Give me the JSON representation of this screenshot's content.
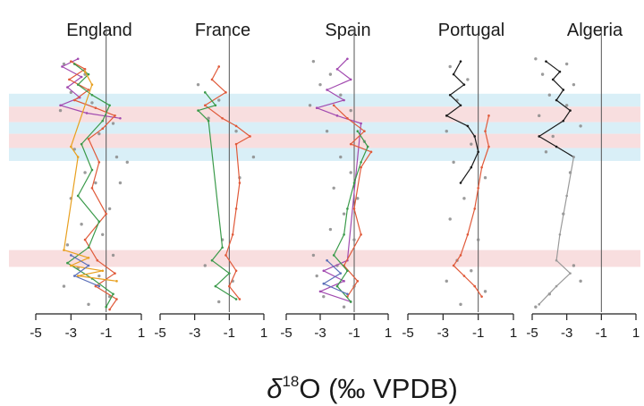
{
  "figure": {
    "xlabel_symbol": "δ",
    "xlabel_superscript": "18",
    "xlabel_rest": "O (‰ VPDB)"
  },
  "colors": {
    "blue_band": "#d9eff7",
    "pink_band": "#f8dedf",
    "ref_line": "#555555",
    "axis": "#222222",
    "series_palette": [
      "#e05a3a",
      "#3a9a4a",
      "#a24bb0",
      "#e8a020",
      "#5a6fb8",
      "#1a1a1a"
    ],
    "point": "#8a8a8a"
  },
  "bands": [
    {
      "type": "blue",
      "y_from": 0.155,
      "y_to": 0.205
    },
    {
      "type": "pink",
      "y_from": 0.205,
      "y_to": 0.265
    },
    {
      "type": "blue",
      "y_from": 0.265,
      "y_to": 0.31
    },
    {
      "type": "pink",
      "y_from": 0.31,
      "y_to": 0.365
    },
    {
      "type": "blue",
      "y_from": 0.365,
      "y_to": 0.415
    },
    {
      "type": "pink",
      "y_from": 0.76,
      "y_to": 0.825
    }
  ],
  "chart_data": [
    {
      "type": "line",
      "title": "England",
      "xlim": [
        -5,
        1
      ],
      "xticks": [
        "-5",
        "-3",
        "-1",
        "1"
      ],
      "ref_x": -1,
      "series": [
        {
          "color": "#a24bb0",
          "points": [
            [
              -2.6,
              0.02
            ],
            [
              -3.5,
              0.05
            ],
            [
              -2.4,
              0.09
            ],
            [
              -3.2,
              0.13
            ],
            [
              -2.5,
              0.17
            ],
            [
              -3.6,
              0.2
            ],
            [
              -2.1,
              0.23
            ],
            [
              -0.2,
              0.25
            ]
          ]
        },
        {
          "color": "#e05a3a",
          "points": [
            [
              -3.0,
              0.03
            ],
            [
              -2.2,
              0.06
            ],
            [
              -3.1,
              0.1
            ],
            [
              -2.0,
              0.14
            ],
            [
              -2.8,
              0.18
            ],
            [
              -1.6,
              0.21
            ],
            [
              -0.5,
              0.24
            ],
            [
              -1.2,
              0.29
            ],
            [
              -2.0,
              0.33
            ],
            [
              -1.4,
              0.42
            ],
            [
              -1.8,
              0.52
            ],
            [
              -1.0,
              0.62
            ],
            [
              -2.2,
              0.72
            ],
            [
              -1.5,
              0.8
            ],
            [
              -0.5,
              0.85
            ],
            [
              -1.6,
              0.9
            ],
            [
              -0.4,
              0.95
            ],
            [
              -0.8,
              0.99
            ]
          ]
        },
        {
          "color": "#3a9a4a",
          "points": [
            [
              -2.8,
              0.04
            ],
            [
              -2.0,
              0.08
            ],
            [
              -2.6,
              0.12
            ],
            [
              -1.8,
              0.16
            ],
            [
              -0.8,
              0.2
            ],
            [
              -1.2,
              0.26
            ],
            [
              -2.4,
              0.35
            ],
            [
              -1.8,
              0.45
            ],
            [
              -2.6,
              0.55
            ],
            [
              -1.4,
              0.65
            ],
            [
              -2.0,
              0.75
            ],
            [
              -3.2,
              0.81
            ],
            [
              -1.8,
              0.87
            ],
            [
              -0.6,
              0.93
            ],
            [
              -1.0,
              0.98
            ]
          ]
        },
        {
          "color": "#e8a020",
          "points": [
            [
              -2.2,
              0.07
            ],
            [
              -1.8,
              0.12
            ],
            [
              -3.0,
              0.36
            ],
            [
              -2.6,
              0.4
            ],
            [
              -3.4,
              0.76
            ],
            [
              -2.0,
              0.79
            ],
            [
              -3.0,
              0.82
            ],
            [
              -1.2,
              0.84
            ],
            [
              -2.6,
              0.86
            ],
            [
              -0.4,
              0.88
            ]
          ]
        },
        {
          "color": "#5a6fb8",
          "points": [
            [
              -3.0,
              0.78
            ],
            [
              -2.0,
              0.82
            ],
            [
              -2.8,
              0.86
            ],
            [
              -1.4,
              0.9
            ]
          ]
        }
      ],
      "points": [
        [
          -3.4,
          0.04
        ],
        [
          -2.2,
          0.08
        ],
        [
          -3.0,
          0.15
        ],
        [
          -1.8,
          0.19
        ],
        [
          -3.6,
          0.22
        ],
        [
          -0.6,
          0.27
        ],
        [
          -1.4,
          0.31
        ],
        [
          -2.8,
          0.37
        ],
        [
          -0.4,
          0.4
        ],
        [
          -2.2,
          0.46
        ],
        [
          -1.6,
          0.5
        ],
        [
          -3.0,
          0.56
        ],
        [
          -0.8,
          0.6
        ],
        [
          -2.4,
          0.66
        ],
        [
          -1.2,
          0.7
        ],
        [
          -3.2,
          0.74
        ],
        [
          -0.6,
          0.78
        ],
        [
          -2.6,
          0.83
        ],
        [
          -1.4,
          0.86
        ],
        [
          -3.4,
          0.9
        ],
        [
          -0.8,
          0.94
        ],
        [
          -2.0,
          0.97
        ],
        [
          0.2,
          0.42
        ],
        [
          -0.2,
          0.5
        ]
      ]
    },
    {
      "type": "line",
      "title": "France",
      "xlim": [
        -5,
        1
      ],
      "xticks": [
        "-5",
        "-3",
        "-1",
        "1"
      ],
      "ref_x": -1,
      "series": [
        {
          "color": "#e05a3a",
          "points": [
            [
              -1.6,
              0.05
            ],
            [
              -2.0,
              0.1
            ],
            [
              -1.2,
              0.15
            ],
            [
              -2.4,
              0.2
            ],
            [
              -1.4,
              0.25
            ],
            [
              -0.6,
              0.28
            ],
            [
              0.2,
              0.32
            ],
            [
              -0.6,
              0.35
            ],
            [
              -0.4,
              0.5
            ],
            [
              -0.6,
              0.6
            ],
            [
              -0.8,
              0.7
            ],
            [
              -1.2,
              0.78
            ],
            [
              -0.6,
              0.84
            ],
            [
              -1.0,
              0.9
            ],
            [
              -0.4,
              0.95
            ]
          ]
        },
        {
          "color": "#3a9a4a",
          "points": [
            [
              -2.4,
              0.15
            ],
            [
              -1.8,
              0.2
            ],
            [
              -2.8,
              0.22
            ],
            [
              -2.2,
              0.26
            ],
            [
              -1.4,
              0.75
            ],
            [
              -2.0,
              0.8
            ],
            [
              -1.0,
              0.85
            ],
            [
              -1.8,
              0.9
            ],
            [
              -0.6,
              0.95
            ]
          ]
        }
      ],
      "points": [
        [
          -2.8,
          0.12
        ],
        [
          -1.6,
          0.18
        ],
        [
          -2.2,
          0.25
        ],
        [
          -0.6,
          0.3
        ],
        [
          0.4,
          0.4
        ],
        [
          -0.4,
          0.48
        ],
        [
          -1.4,
          0.72
        ],
        [
          -2.4,
          0.82
        ],
        [
          -0.8,
          0.88
        ],
        [
          -1.6,
          0.96
        ]
      ]
    },
    {
      "type": "line",
      "title": "Spain",
      "xlim": [
        -5,
        1
      ],
      "xticks": [
        "-5",
        "-3",
        "-1",
        "1"
      ],
      "ref_x": -1,
      "series": [
        {
          "color": "#a24bb0",
          "points": [
            [
              -1.4,
              0.02
            ],
            [
              -2.0,
              0.06
            ],
            [
              -1.2,
              0.1
            ],
            [
              -2.6,
              0.14
            ],
            [
              -1.6,
              0.18
            ],
            [
              -3.2,
              0.21
            ],
            [
              -2.0,
              0.24
            ],
            [
              -0.6,
              0.27
            ],
            [
              -1.4,
              0.8
            ],
            [
              -2.8,
              0.84
            ],
            [
              -1.6,
              0.88
            ],
            [
              -3.0,
              0.92
            ],
            [
              -1.2,
              0.96
            ]
          ]
        },
        {
          "color": "#e05a3a",
          "points": [
            [
              -2.2,
              0.2
            ],
            [
              -1.4,
              0.25
            ],
            [
              -0.4,
              0.3
            ],
            [
              -1.2,
              0.35
            ],
            [
              0.0,
              0.38
            ],
            [
              -0.6,
              0.44
            ],
            [
              -1.0,
              0.6
            ],
            [
              -0.6,
              0.7
            ],
            [
              -1.6,
              0.82
            ],
            [
              -0.8,
              0.88
            ],
            [
              -1.4,
              0.94
            ]
          ]
        },
        {
          "color": "#3a9a4a",
          "points": [
            [
              -0.8,
              0.3
            ],
            [
              -0.2,
              0.36
            ],
            [
              -0.6,
              0.42
            ],
            [
              -1.0,
              0.5
            ],
            [
              -1.4,
              0.6
            ],
            [
              -1.6,
              0.7
            ],
            [
              -2.2,
              0.78
            ],
            [
              -1.4,
              0.84
            ],
            [
              -2.0,
              0.9
            ],
            [
              -1.2,
              0.96
            ]
          ]
        },
        {
          "color": "#5a6fb8",
          "points": [
            [
              -2.6,
              0.8
            ],
            [
              -1.8,
              0.85
            ],
            [
              -2.8,
              0.89
            ],
            [
              -1.4,
              0.93
            ]
          ]
        }
      ],
      "points": [
        [
          -3.4,
          0.03
        ],
        [
          -2.4,
          0.08
        ],
        [
          -3.0,
          0.12
        ],
        [
          -1.8,
          0.16
        ],
        [
          -3.6,
          0.2
        ],
        [
          -1.2,
          0.22
        ],
        [
          -2.6,
          0.3
        ],
        [
          -0.4,
          0.34
        ],
        [
          -1.8,
          0.4
        ],
        [
          -1.2,
          0.46
        ],
        [
          -2.2,
          0.52
        ],
        [
          -0.8,
          0.56
        ],
        [
          -1.6,
          0.62
        ],
        [
          -2.4,
          0.68
        ],
        [
          -1.0,
          0.72
        ],
        [
          -3.4,
          0.78
        ],
        [
          -2.0,
          0.82
        ],
        [
          -3.2,
          0.86
        ],
        [
          -1.0,
          0.9
        ],
        [
          -2.8,
          0.94
        ],
        [
          -1.6,
          0.98
        ]
      ]
    },
    {
      "type": "line",
      "title": "Portugal",
      "xlim": [
        -5,
        1
      ],
      "xticks": [
        "-5",
        "-3",
        "-1",
        "1"
      ],
      "ref_x": -1,
      "series": [
        {
          "color": "#1a1a1a",
          "points": [
            [
              -2.0,
              0.03
            ],
            [
              -2.4,
              0.08
            ],
            [
              -1.8,
              0.12
            ],
            [
              -2.6,
              0.16
            ],
            [
              -2.0,
              0.2
            ],
            [
              -2.8,
              0.24
            ],
            [
              -1.6,
              0.28
            ],
            [
              -1.2,
              0.32
            ],
            [
              -1.0,
              0.38
            ],
            [
              -1.4,
              0.44
            ],
            [
              -2.0,
              0.5
            ]
          ]
        },
        {
          "color": "#e05a3a",
          "points": [
            [
              -0.4,
              0.24
            ],
            [
              -0.6,
              0.3
            ],
            [
              -0.4,
              0.36
            ],
            [
              -0.8,
              0.44
            ],
            [
              -1.0,
              0.52
            ],
            [
              -1.2,
              0.6
            ],
            [
              -1.6,
              0.7
            ],
            [
              -2.0,
              0.78
            ],
            [
              -2.4,
              0.82
            ],
            [
              -1.8,
              0.86
            ],
            [
              -1.2,
              0.9
            ],
            [
              -0.8,
              0.94
            ]
          ]
        }
      ],
      "points": [
        [
          -2.6,
          0.05
        ],
        [
          -1.6,
          0.1
        ],
        [
          -2.2,
          0.18
        ],
        [
          -2.8,
          0.3
        ],
        [
          -1.4,
          0.35
        ],
        [
          -2.4,
          0.42
        ],
        [
          -0.6,
          0.48
        ],
        [
          -1.8,
          0.56
        ],
        [
          -2.6,
          0.64
        ],
        [
          -1.0,
          0.72
        ],
        [
          -2.2,
          0.8
        ],
        [
          -1.4,
          0.84
        ],
        [
          -2.8,
          0.88
        ],
        [
          -0.6,
          0.92
        ],
        [
          -2.0,
          0.97
        ]
      ]
    },
    {
      "type": "line",
      "title": "Algeria",
      "xlim": [
        -5,
        1
      ],
      "xticks": [
        "-5",
        "-3",
        "-1",
        "1"
      ],
      "ref_x": -1,
      "series": [
        {
          "color": "#1a1a1a",
          "points": [
            [
              -4.2,
              0.03
            ],
            [
              -3.4,
              0.07
            ],
            [
              -3.8,
              0.1
            ],
            [
              -3.2,
              0.14
            ],
            [
              -3.6,
              0.18
            ],
            [
              -2.8,
              0.22
            ],
            [
              -3.2,
              0.26
            ],
            [
              -4.6,
              0.32
            ],
            [
              -3.6,
              0.36
            ],
            [
              -2.6,
              0.4
            ]
          ]
        },
        {
          "color": "#9a9a9a",
          "points": [
            [
              -2.6,
              0.4
            ],
            [
              -3.0,
              0.55
            ],
            [
              -3.4,
              0.7
            ],
            [
              -3.6,
              0.8
            ],
            [
              -2.8,
              0.85
            ],
            [
              -3.6,
              0.9
            ],
            [
              -4.6,
              0.97
            ]
          ]
        }
      ],
      "points": [
        [
          -4.8,
          0.02
        ],
        [
          -3.0,
          0.04
        ],
        [
          -4.4,
          0.08
        ],
        [
          -2.6,
          0.12
        ],
        [
          -4.0,
          0.16
        ],
        [
          -3.0,
          0.2
        ],
        [
          -4.6,
          0.24
        ],
        [
          -2.2,
          0.28
        ],
        [
          -3.8,
          0.32
        ],
        [
          -4.2,
          0.38
        ],
        [
          -2.8,
          0.46
        ],
        [
          -3.2,
          0.62
        ],
        [
          -2.6,
          0.82
        ],
        [
          -2.2,
          0.88
        ],
        [
          -4.0,
          0.93
        ],
        [
          -4.8,
          0.98
        ]
      ]
    }
  ]
}
